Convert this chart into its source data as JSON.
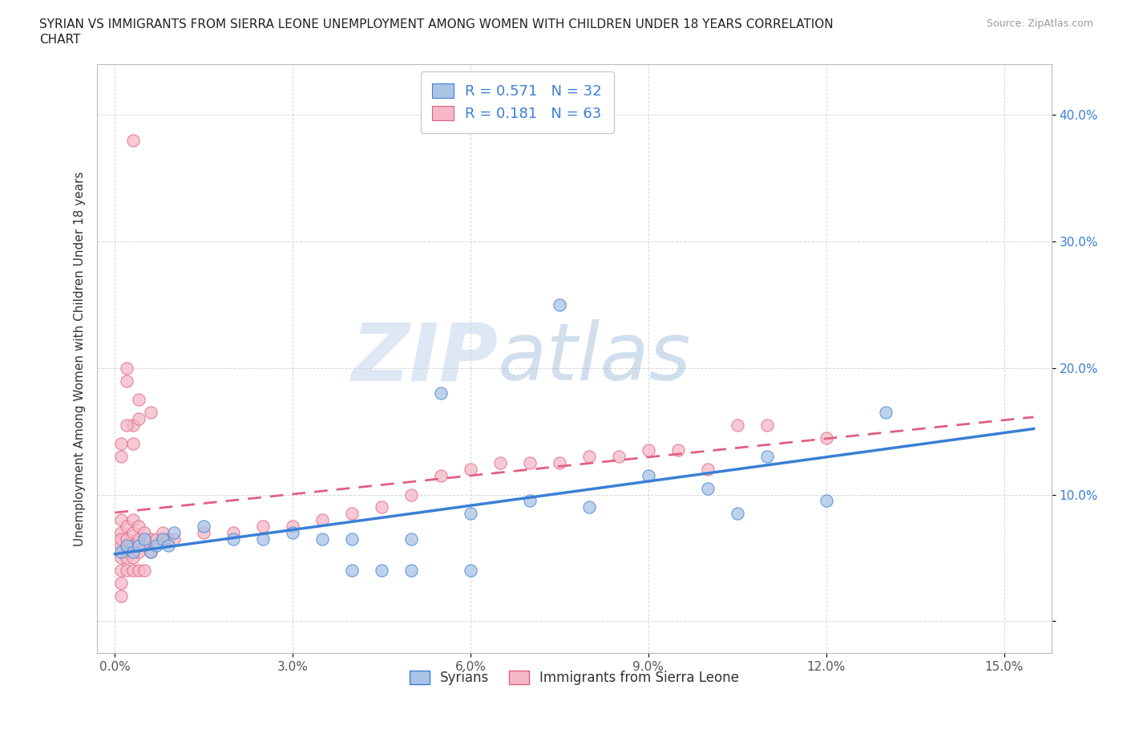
{
  "title_line1": "SYRIAN VS IMMIGRANTS FROM SIERRA LEONE UNEMPLOYMENT AMONG WOMEN WITH CHILDREN UNDER 18 YEARS CORRELATION",
  "title_line2": "CHART",
  "source": "Source: ZipAtlas.com",
  "ylabel": "Unemployment Among Women with Children Under 18 years",
  "x_ticks": [
    0.0,
    0.03,
    0.06,
    0.09,
    0.12,
    0.15
  ],
  "x_tick_labels": [
    "0.0%",
    "3.0%",
    "6.0%",
    "9.0%",
    "12.0%",
    "15.0%"
  ],
  "y_ticks": [
    0.0,
    0.1,
    0.2,
    0.3,
    0.4
  ],
  "y_tick_labels": [
    "",
    "10.0%",
    "20.0%",
    "30.0%",
    "40.0%"
  ],
  "xlim": [
    -0.003,
    0.158
  ],
  "ylim": [
    -0.025,
    0.44
  ],
  "legend_labels": [
    "Syrians",
    "Immigrants from Sierra Leone"
  ],
  "r_syrian": 0.571,
  "n_syrian": 32,
  "r_sierra": 0.181,
  "n_sierra": 63,
  "color_syrian": "#aac4e5",
  "color_sierra": "#f5b8c8",
  "line_color_syrian": "#3a7fd5",
  "line_color_sierra": "#e06080",
  "watermark_zip": "ZIP",
  "watermark_atlas": "atlas",
  "syrian_x": [
    0.001,
    0.002,
    0.003,
    0.004,
    0.005,
    0.006,
    0.007,
    0.008,
    0.009,
    0.01,
    0.015,
    0.02,
    0.025,
    0.03,
    0.035,
    0.04,
    0.05,
    0.055,
    0.06,
    0.07,
    0.075,
    0.08,
    0.09,
    0.1,
    0.105,
    0.11,
    0.12,
    0.13,
    0.04,
    0.045,
    0.05,
    0.06
  ],
  "syrian_y": [
    0.055,
    0.06,
    0.055,
    0.06,
    0.065,
    0.055,
    0.06,
    0.065,
    0.06,
    0.07,
    0.075,
    0.065,
    0.065,
    0.07,
    0.065,
    0.065,
    0.065,
    0.18,
    0.085,
    0.095,
    0.25,
    0.09,
    0.115,
    0.105,
    0.085,
    0.13,
    0.095,
    0.165,
    0.04,
    0.04,
    0.04,
    0.04
  ],
  "sierra_x": [
    0.001,
    0.001,
    0.001,
    0.001,
    0.001,
    0.001,
    0.001,
    0.001,
    0.002,
    0.002,
    0.002,
    0.002,
    0.002,
    0.003,
    0.003,
    0.003,
    0.003,
    0.003,
    0.004,
    0.004,
    0.004,
    0.004,
    0.005,
    0.005,
    0.005,
    0.006,
    0.006,
    0.007,
    0.008,
    0.009,
    0.01,
    0.015,
    0.02,
    0.025,
    0.03,
    0.035,
    0.04,
    0.045,
    0.05,
    0.055,
    0.06,
    0.065,
    0.07,
    0.075,
    0.08,
    0.085,
    0.09,
    0.095,
    0.1,
    0.105,
    0.11,
    0.12,
    0.003,
    0.002,
    0.004,
    0.006,
    0.001,
    0.002,
    0.003,
    0.001,
    0.002,
    0.003,
    0.004
  ],
  "sierra_y": [
    0.06,
    0.05,
    0.07,
    0.04,
    0.03,
    0.02,
    0.08,
    0.065,
    0.055,
    0.065,
    0.075,
    0.05,
    0.04,
    0.06,
    0.07,
    0.08,
    0.05,
    0.04,
    0.065,
    0.075,
    0.055,
    0.04,
    0.06,
    0.07,
    0.04,
    0.065,
    0.055,
    0.065,
    0.07,
    0.065,
    0.065,
    0.07,
    0.07,
    0.075,
    0.075,
    0.08,
    0.085,
    0.09,
    0.1,
    0.115,
    0.12,
    0.125,
    0.125,
    0.125,
    0.13,
    0.13,
    0.135,
    0.135,
    0.12,
    0.155,
    0.155,
    0.145,
    0.38,
    0.2,
    0.175,
    0.165,
    0.13,
    0.19,
    0.155,
    0.14,
    0.155,
    0.14,
    0.16
  ]
}
